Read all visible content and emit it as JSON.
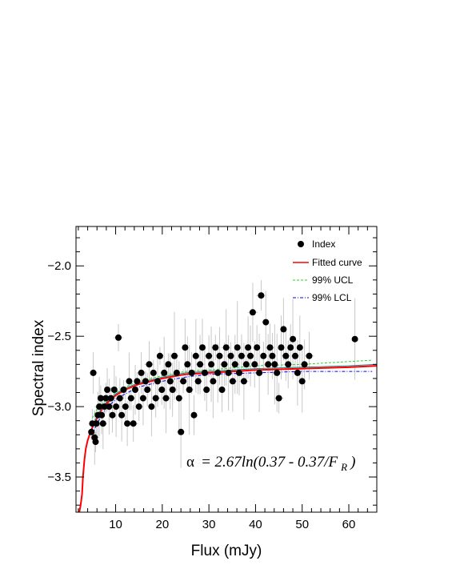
{
  "chart_data": {
    "type": "scatter",
    "xlabel": "Flux (mJy)",
    "ylabel": "Spectral index",
    "xlim": [
      1.5,
      66
    ],
    "ylim": [
      -3.75,
      -1.72
    ],
    "xticks": [
      10,
      20,
      30,
      40,
      50,
      60
    ],
    "xtick_labels": [
      "10",
      "20",
      "30",
      "40",
      "50",
      "60"
    ],
    "yticks": [
      -3.5,
      -3.0,
      -2.5,
      -2.0
    ],
    "ytick_labels": [
      "−3.5",
      "−3.0",
      "−2.5",
      "−2.0"
    ],
    "grid": false,
    "legend_position": "top-right",
    "legend": [
      "Index",
      "Fitted curve",
      "99% UCL",
      "99% LCL"
    ],
    "annotation": {
      "alpha_symbol": "α",
      "formula_main": "= 2.67ln(0.37 - 0.37/F",
      "formula_sub": "R",
      "formula_close": ")"
    },
    "colors": {
      "points": "#000000",
      "error_bars": "#c8c8c8",
      "fit": "#ff0000",
      "ucl": "#33cc33",
      "lcl": "#0000ff",
      "mid": "#1a8080"
    },
    "series": [
      {
        "name": "Index",
        "kind": "points",
        "points": [
          [
            4.8,
            -3.18
          ],
          [
            5.0,
            -3.12
          ],
          [
            5.2,
            -2.76
          ],
          [
            5.5,
            -3.22
          ],
          [
            5.7,
            -3.25
          ],
          [
            5.9,
            -3.12
          ],
          [
            6.2,
            -3.06
          ],
          [
            6.5,
            -3.0
          ],
          [
            6.8,
            -2.94
          ],
          [
            7.0,
            -3.06
          ],
          [
            7.3,
            -3.12
          ],
          [
            7.6,
            -3.0
          ],
          [
            7.9,
            -2.94
          ],
          [
            8.2,
            -2.88
          ],
          [
            8.6,
            -3.0
          ],
          [
            9.0,
            -2.94
          ],
          [
            9.3,
            -3.06
          ],
          [
            9.7,
            -2.88
          ],
          [
            10.1,
            -3.0
          ],
          [
            10.6,
            -2.51
          ],
          [
            10.9,
            -2.94
          ],
          [
            11.3,
            -3.06
          ],
          [
            11.7,
            -2.88
          ],
          [
            12.1,
            -3.0
          ],
          [
            12.5,
            -3.12
          ],
          [
            12.9,
            -2.82
          ],
          [
            13.3,
            -2.94
          ],
          [
            13.8,
            -3.12
          ],
          [
            14.2,
            -2.88
          ],
          [
            14.6,
            -2.82
          ],
          [
            15.0,
            -3.0
          ],
          [
            15.5,
            -2.76
          ],
          [
            15.9,
            -2.94
          ],
          [
            16.4,
            -2.82
          ],
          [
            16.8,
            -2.88
          ],
          [
            17.2,
            -2.7
          ],
          [
            17.7,
            -3.0
          ],
          [
            18.1,
            -2.76
          ],
          [
            18.6,
            -2.94
          ],
          [
            19.0,
            -2.82
          ],
          [
            19.5,
            -2.64
          ],
          [
            19.9,
            -2.88
          ],
          [
            20.4,
            -2.76
          ],
          [
            20.8,
            -2.94
          ],
          [
            21.3,
            -2.7
          ],
          [
            21.7,
            -2.82
          ],
          [
            22.2,
            -2.88
          ],
          [
            22.6,
            -2.64
          ],
          [
            23.1,
            -2.76
          ],
          [
            23.6,
            -2.94
          ],
          [
            24.0,
            -3.18
          ],
          [
            24.5,
            -2.82
          ],
          [
            24.9,
            -2.58
          ],
          [
            25.4,
            -2.7
          ],
          [
            25.8,
            -2.88
          ],
          [
            26.3,
            -2.76
          ],
          [
            26.8,
            -3.06
          ],
          [
            27.2,
            -2.64
          ],
          [
            27.7,
            -2.82
          ],
          [
            28.1,
            -2.7
          ],
          [
            28.6,
            -2.58
          ],
          [
            29.1,
            -2.76
          ],
          [
            29.5,
            -2.88
          ],
          [
            30.0,
            -2.64
          ],
          [
            30.5,
            -2.7
          ],
          [
            30.9,
            -2.82
          ],
          [
            31.4,
            -2.58
          ],
          [
            31.9,
            -2.76
          ],
          [
            32.3,
            -2.64
          ],
          [
            32.8,
            -2.88
          ],
          [
            33.3,
            -2.7
          ],
          [
            33.7,
            -2.58
          ],
          [
            34.2,
            -2.76
          ],
          [
            34.7,
            -2.64
          ],
          [
            35.1,
            -2.82
          ],
          [
            35.6,
            -2.7
          ],
          [
            36.1,
            -2.58
          ],
          [
            36.5,
            -2.76
          ],
          [
            37.0,
            -2.64
          ],
          [
            37.5,
            -2.82
          ],
          [
            38.0,
            -2.7
          ],
          [
            38.4,
            -2.58
          ],
          [
            38.9,
            -2.64
          ],
          [
            39.4,
            -2.33
          ],
          [
            39.8,
            -2.7
          ],
          [
            40.3,
            -2.58
          ],
          [
            40.8,
            -2.76
          ],
          [
            41.2,
            -2.21
          ],
          [
            41.7,
            -2.64
          ],
          [
            42.2,
            -2.4
          ],
          [
            42.7,
            -2.7
          ],
          [
            43.1,
            -2.58
          ],
          [
            43.6,
            -2.64
          ],
          [
            44.1,
            -2.7
          ],
          [
            44.6,
            -2.76
          ],
          [
            45.0,
            -2.94
          ],
          [
            45.5,
            -2.58
          ],
          [
            46.0,
            -2.45
          ],
          [
            46.5,
            -2.64
          ],
          [
            47.0,
            -2.7
          ],
          [
            47.5,
            -2.58
          ],
          [
            48.0,
            -2.52
          ],
          [
            48.5,
            -2.64
          ],
          [
            49.0,
            -2.76
          ],
          [
            49.5,
            -2.58
          ],
          [
            50.0,
            -2.82
          ],
          [
            50.5,
            -2.7
          ],
          [
            51.5,
            -2.64
          ],
          [
            61.3,
            -2.52
          ]
        ]
      },
      {
        "name": "Fitted curve",
        "kind": "line",
        "x": [
          2.2,
          2.5,
          2.8,
          3.0,
          3.3,
          3.6,
          4.0,
          4.5,
          5.0,
          6.0,
          7.0,
          8.0,
          10.0,
          12.0,
          15.0,
          20.0,
          25.0,
          30.0,
          40.0,
          50.0,
          60.0,
          66.0
        ],
        "y": [
          -3.75,
          -3.7,
          -3.62,
          -3.5,
          -3.38,
          -3.3,
          -3.24,
          -3.19,
          -3.15,
          -3.08,
          -3.02,
          -2.98,
          -2.92,
          -2.88,
          -2.84,
          -2.8,
          -2.77,
          -2.76,
          -2.74,
          -2.73,
          -2.72,
          -2.71
        ]
      },
      {
        "name": "99% UCL",
        "kind": "line",
        "x": [
          5.0,
          6.0,
          8.0,
          10.0,
          12.0,
          15.0,
          20.0,
          25.0,
          30.0,
          40.0,
          50.0,
          60.0,
          65.0
        ],
        "y": [
          -3.08,
          -3.02,
          -2.95,
          -2.9,
          -2.86,
          -2.82,
          -2.78,
          -2.75,
          -2.74,
          -2.71,
          -2.7,
          -2.68,
          -2.67
        ]
      },
      {
        "name": "99% LCL",
        "kind": "line",
        "x": [
          5.0,
          6.0,
          8.0,
          10.0,
          12.0,
          15.0,
          20.0,
          25.0,
          30.0,
          40.0,
          50.0,
          60.0,
          65.0
        ],
        "y": [
          -3.2,
          -3.12,
          -3.01,
          -2.95,
          -2.91,
          -2.86,
          -2.82,
          -2.79,
          -2.77,
          -2.76,
          -2.75,
          -2.75,
          -2.75
        ]
      }
    ]
  }
}
